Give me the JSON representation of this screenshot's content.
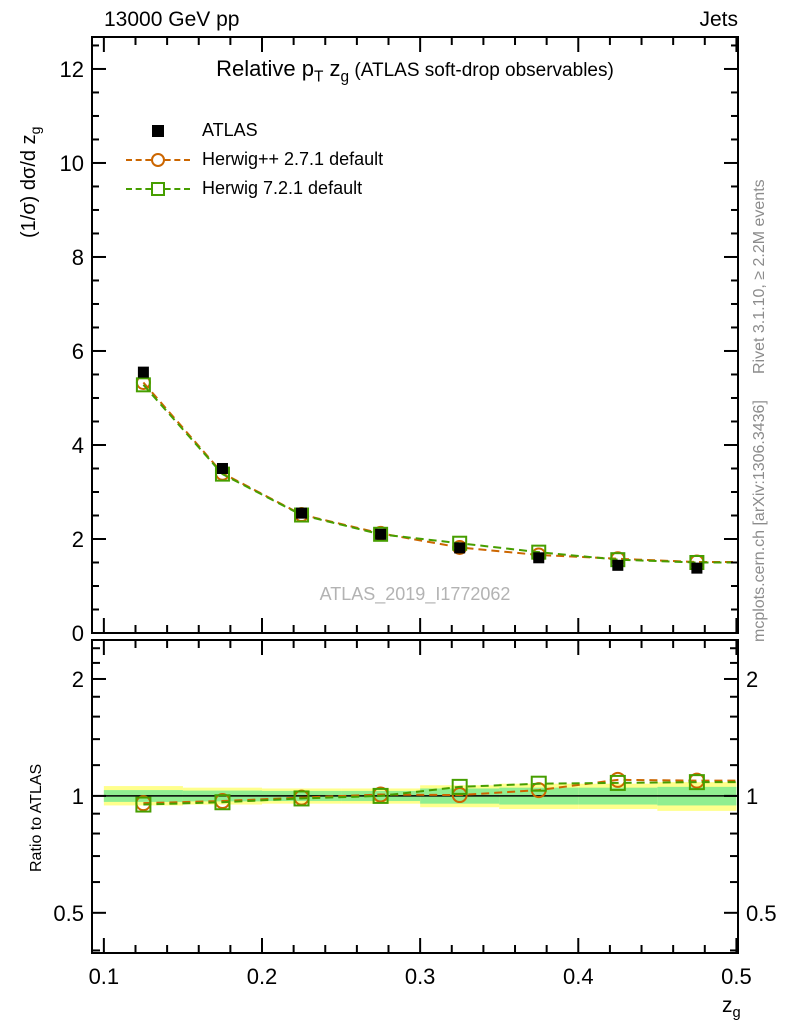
{
  "header": {
    "left": "13000 GeV pp",
    "right": "Jets"
  },
  "title": {
    "part1": "Relative p",
    "sub1": "T",
    "part2": " z",
    "sub2": "g",
    "part3": " (ATLAS soft-drop observables)"
  },
  "legend": [
    {
      "label": "ATLAS",
      "marker": "filled-square",
      "color": "#000000"
    },
    {
      "label": "Herwig++ 2.7.1 default",
      "marker": "open-circle-dashed",
      "color": "#cc6600"
    },
    {
      "label": "Herwig 7.2.1 default",
      "marker": "open-square-dashed",
      "color": "#469e00"
    }
  ],
  "watermark": "ATLAS_2019_I1772062",
  "side_notes": {
    "top": "Rivet 3.1.10, ≥ 2.2M events",
    "bottom": "mcplots.cern.ch [arXiv:1306.3436]"
  },
  "axis_labels": {
    "y_main_text": "(1/σ) dσ/d z",
    "y_main_sub": "g",
    "y_ratio": "Ratio to ATLAS",
    "x_text": "z",
    "x_sub": "g"
  },
  "chart_data": {
    "type": "line",
    "title": "Relative pT zg (ATLAS soft-drop observables)",
    "xlabel": "zg",
    "ylabel_main": "(1/sigma) dsigma/d zg",
    "ylabel_ratio": "Ratio to ATLAS",
    "x_axis": {
      "min": 0.0925,
      "max": 0.501,
      "major_ticks": [
        {
          "v": 0.1,
          "label": "0.1"
        },
        {
          "v": 0.2,
          "label": "0.2"
        },
        {
          "v": 0.3,
          "label": "0.3"
        },
        {
          "v": 0.4,
          "label": "0.4"
        },
        {
          "v": 0.5,
          "label": "0.5"
        }
      ],
      "minor_ticks": [
        0.12,
        0.14,
        0.16,
        0.18,
        0.22,
        0.24,
        0.26,
        0.28,
        0.32,
        0.34,
        0.36,
        0.38,
        0.42,
        0.44,
        0.46,
        0.48
      ]
    },
    "y_main_axis": {
      "min": 0,
      "max": 12.68,
      "major_ticks": [
        {
          "v": 0,
          "label": "0"
        },
        {
          "v": 2,
          "label": "2"
        },
        {
          "v": 4,
          "label": "4"
        },
        {
          "v": 6,
          "label": "6"
        },
        {
          "v": 8,
          "label": "8"
        },
        {
          "v": 10,
          "label": "10"
        },
        {
          "v": 12,
          "label": "12"
        }
      ],
      "minor_step": 0.5
    },
    "y_ratio_axis": {
      "scale": "log",
      "min": 0.394,
      "max": 2.52,
      "major_ticks": [
        {
          "v": 0.5,
          "label": "0.5"
        },
        {
          "v": 1,
          "label": "1"
        },
        {
          "v": 2,
          "label": "2"
        }
      ],
      "minor_ticks": [
        0.4,
        0.6,
        0.7,
        0.8,
        0.9,
        1.2,
        1.4,
        1.6,
        1.8,
        2.2,
        2.4
      ]
    },
    "x": [
      0.125,
      0.175,
      0.225,
      0.275,
      0.325,
      0.375,
      0.425,
      0.475
    ],
    "bin_edges": [
      0.1,
      0.15,
      0.2,
      0.25,
      0.3,
      0.35,
      0.4,
      0.45,
      0.5
    ],
    "series": [
      {
        "name": "ATLAS",
        "color": "#000000",
        "marker": "square-filled",
        "values": [
          5.55,
          3.5,
          2.55,
          2.1,
          1.81,
          1.6,
          1.44,
          1.38
        ],
        "errors": [
          0.1,
          0.06,
          0.04,
          0.03,
          0.03,
          0.04,
          0.04,
          0.04
        ]
      },
      {
        "name": "Herwig++ 2.7.1 default",
        "color": "#cc6600",
        "marker": "circle-open",
        "dashed": true,
        "values": [
          5.33,
          3.4,
          2.52,
          2.12,
          1.82,
          1.66,
          1.58,
          1.51
        ],
        "ratio": [
          0.958,
          0.97,
          0.99,
          1.008,
          1.005,
          1.035,
          1.1,
          1.095
        ]
      },
      {
        "name": "Herwig 7.2.1 default",
        "color": "#469e00",
        "marker": "square-open",
        "dashed": true,
        "values": [
          5.28,
          3.38,
          2.51,
          2.1,
          1.91,
          1.72,
          1.56,
          1.5
        ],
        "ratio": [
          0.95,
          0.963,
          0.985,
          1.0,
          1.055,
          1.075,
          1.08,
          1.085
        ]
      }
    ],
    "ratio_bands": {
      "yellow": {
        "color": "#ffff8c",
        "lo": [
          0.945,
          0.95,
          0.955,
          0.955,
          0.935,
          0.925,
          0.925,
          0.915
        ],
        "hi": [
          1.06,
          1.05,
          1.045,
          1.045,
          1.065,
          1.075,
          1.075,
          1.085
        ]
      },
      "green": {
        "color": "#90ee90",
        "lo": [
          0.965,
          0.968,
          0.97,
          0.97,
          0.955,
          0.95,
          0.95,
          0.945
        ],
        "hi": [
          1.035,
          1.032,
          1.03,
          1.03,
          1.045,
          1.05,
          1.05,
          1.055
        ]
      }
    },
    "ratio_reference": 1.0
  }
}
